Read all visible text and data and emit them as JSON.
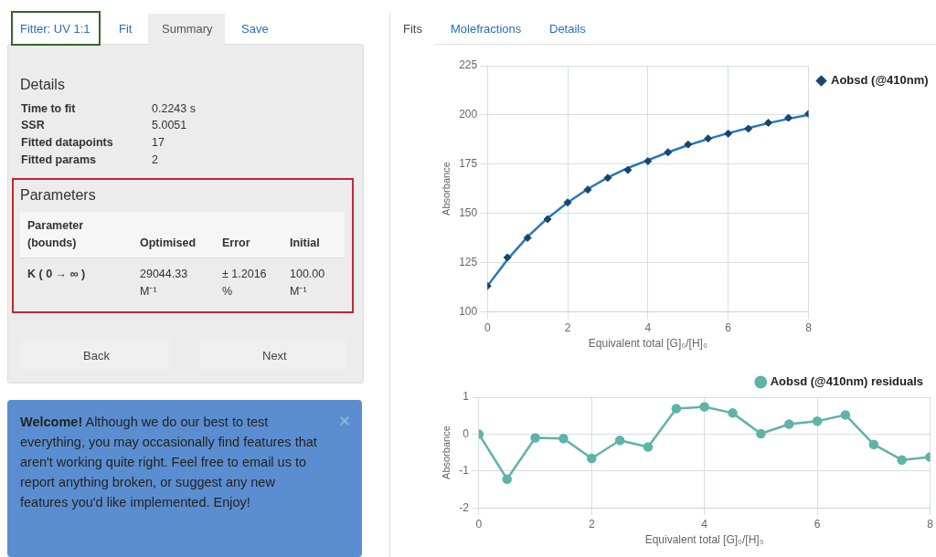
{
  "chart_data": [
    {
      "type": "other",
      "annotations": [
        "Fitter: UV 1:1",
        "Fit",
        "Summary",
        "Save",
        "Details",
        "Time to fit",
        "0.2243 s",
        "SSR",
        "5.0051",
        "Fitted datapoints",
        "17",
        "Fitted params",
        "2",
        "Parameters",
        "Parameter (bounds)",
        "Optimised",
        "Error",
        "Initial",
        "K ( 0 → ∞ )",
        "29044.33 M⁻¹",
        "± 1.2016 %",
        "100.00 M⁻¹",
        "Back",
        "Next",
        "Welcome!",
        "Although we do our best to test everything, you may occasionally find features that aren't working quite right. Feel free to email us to report anything broken, or suggest any new features you'd like implemented. Enjoy!",
        "Fits",
        "Molefractions",
        "Details"
      ]
    },
    {
      "type": "scatter",
      "xlabel": "Equivalent total [G]₀/[H]₀",
      "ylabel": "Absorbance",
      "x": [
        0,
        0.5,
        1,
        1.5,
        2,
        2.5,
        3,
        3.5,
        4,
        4.5,
        5,
        5.5,
        6,
        6.5,
        7,
        7.5,
        8
      ],
      "series": [
        {
          "name": "Aobsd (@410nm)",
          "color": "#14466e",
          "marker": "diamond",
          "values": [
            113,
            127.5,
            137.5,
            147,
            155.5,
            162,
            168,
            172,
            176.5,
            181,
            185,
            188,
            190.5,
            193,
            196,
            198.5,
            200.5
          ]
        },
        {
          "type": "line",
          "color": "#2878b8",
          "marker": "none",
          "values": [
            113,
            126.5,
            138,
            147.5,
            155.5,
            162.3,
            168.2,
            173,
            177,
            181,
            184.6,
            187.8,
            190.7,
            193.3,
            195.8,
            198,
            200
          ]
        }
      ],
      "xlim": [
        0,
        8
      ],
      "xticks": [
        0,
        2,
        4,
        6,
        8
      ],
      "ylim": [
        100,
        225
      ],
      "yticks": [
        100,
        125,
        150,
        175,
        200,
        225
      ],
      "grid": true,
      "legend": "right"
    },
    {
      "type": "line",
      "xlabel": "Equivalent total [G]₀/[H]₀",
      "ylabel": "Absorbance",
      "x": [
        0,
        0.5,
        1,
        1.5,
        2,
        2.5,
        3,
        3.5,
        4,
        4.5,
        5,
        5.5,
        6,
        6.5,
        7,
        7.5,
        8
      ],
      "series": [
        {
          "name": "Aobsd (@410nm) residuals",
          "color": "#5fb3a8",
          "values": [
            0,
            -1.22,
            -0.1,
            -0.12,
            -0.66,
            -0.17,
            -0.35,
            0.69,
            0.74,
            0.57,
            0.01,
            0.27,
            0.35,
            0.52,
            -0.28,
            -0.7,
            -0.62
          ]
        }
      ],
      "xlim": [
        0,
        8
      ],
      "xticks": [
        0,
        2,
        4,
        6,
        8
      ],
      "ylim": [
        -2,
        1
      ],
      "yticks": [
        -2,
        -1,
        0,
        1
      ],
      "grid": true,
      "legend": "top right",
      "marker": "circle"
    }
  ]
}
